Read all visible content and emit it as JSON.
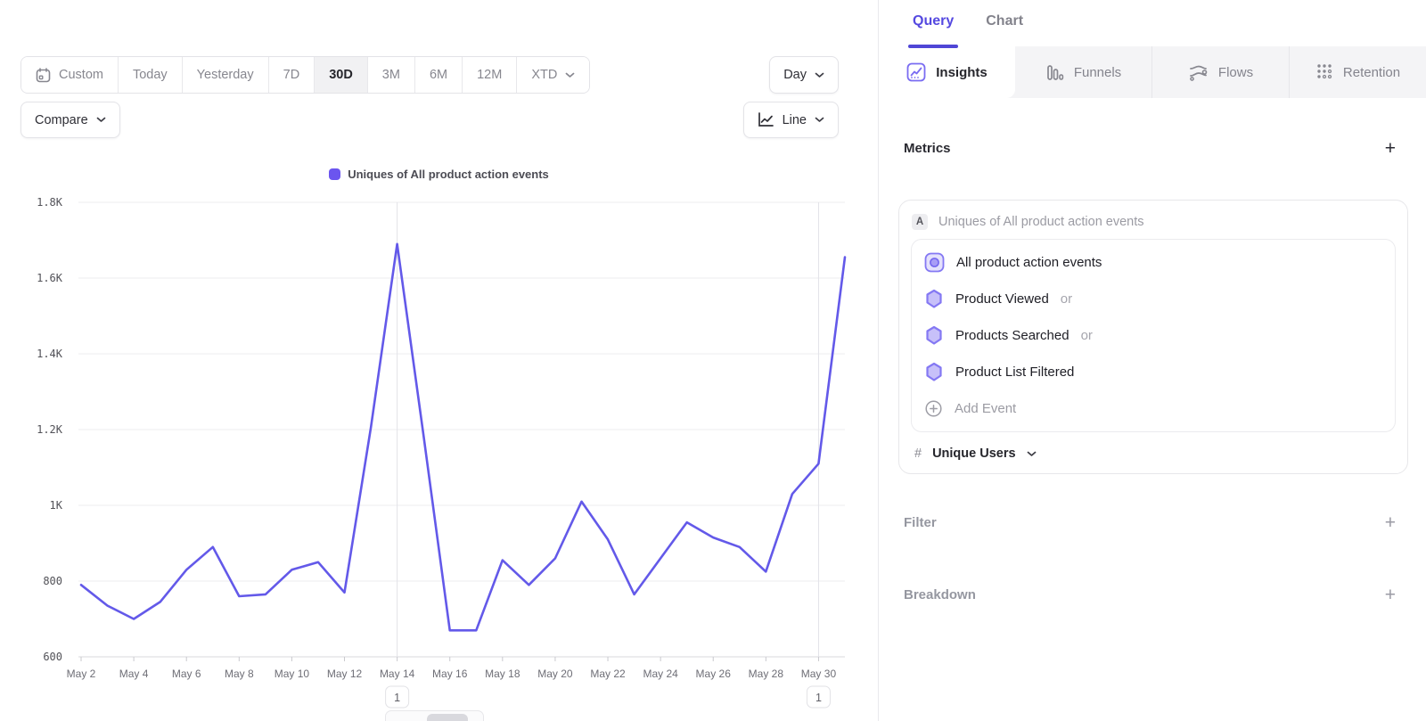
{
  "colors": {
    "accent_purple": "#5549e0",
    "line_color": "#6359e9",
    "legend_swatch": "#6b55ef",
    "grid_line": "#ececef",
    "axis_line": "#d8d8dc",
    "annotation_line": "#e3e3e8",
    "icon_purple": "#7a6cf2",
    "hexagon_fill": "#c7c0f9",
    "hexagon_stroke": "#8478f3"
  },
  "toolbar": {
    "ranges": [
      "Custom",
      "Today",
      "Yesterday",
      "7D",
      "30D",
      "3M",
      "6M",
      "12M",
      "XTD"
    ],
    "selected_range": "30D",
    "granularity_label": "Day",
    "compare_label": "Compare",
    "chart_type_label": "Line"
  },
  "chart_data": {
    "type": "line",
    "title": "",
    "legend_position": "top",
    "grid": true,
    "x": [
      "May 2",
      "May 3",
      "May 4",
      "May 5",
      "May 6",
      "May 7",
      "May 8",
      "May 9",
      "May 10",
      "May 11",
      "May 12",
      "May 13",
      "May 14",
      "May 15",
      "May 16",
      "May 17",
      "May 18",
      "May 19",
      "May 20",
      "May 21",
      "May 22",
      "May 23",
      "May 24",
      "May 25",
      "May 26",
      "May 27",
      "May 28",
      "May 29",
      "May 30",
      "May 31"
    ],
    "series": [
      {
        "name": "Uniques of All product action events",
        "values": [
          790,
          735,
          700,
          745,
          830,
          890,
          760,
          765,
          830,
          850,
          770,
          1205,
          1690,
          1185,
          670,
          670,
          855,
          790,
          860,
          1010,
          910,
          765,
          860,
          955,
          915,
          890,
          825,
          1030,
          1110,
          1655
        ]
      }
    ],
    "ylim": [
      600,
      1800
    ],
    "y_tick_values": [
      600,
      800,
      1000,
      1200,
      1400,
      1600,
      1800
    ],
    "y_tick_labels": [
      "600",
      "800",
      "1K",
      "1.2K",
      "1.4K",
      "1.6K",
      "1.8K"
    ],
    "x_tick_every": 2,
    "annotations": [
      {
        "x": "May 14",
        "label": "1"
      },
      {
        "x": "May 30",
        "label": "1"
      }
    ]
  },
  "panel": {
    "tabs": [
      {
        "label": "Query",
        "active": true
      },
      {
        "label": "Chart",
        "active": false
      }
    ],
    "report_tabs": [
      {
        "label": "Insights",
        "icon": "insights-icon",
        "active": true
      },
      {
        "label": "Funnels",
        "icon": "funnels-icon",
        "active": false
      },
      {
        "label": "Flows",
        "icon": "flows-icon",
        "active": false
      },
      {
        "label": "Retention",
        "icon": "retention-icon",
        "active": false
      }
    ],
    "metrics": {
      "heading": "Metrics",
      "add_metric_label": "+",
      "metric_badge": "A",
      "metric_label": "Uniques of All product action events",
      "events": [
        {
          "name": "All product action events",
          "suffix": "",
          "icon": "event-group-icon"
        },
        {
          "name": "Product Viewed",
          "suffix": "or",
          "icon": "event-hexagon-icon"
        },
        {
          "name": "Products Searched",
          "suffix": "or",
          "icon": "event-hexagon-icon"
        },
        {
          "name": "Product List Filtered",
          "suffix": "",
          "icon": "event-hexagon-icon"
        }
      ],
      "add_event_label": "Add Event",
      "aggregation": {
        "symbol": "#",
        "label": "Unique Users"
      }
    },
    "sections": [
      {
        "heading": "Filter",
        "add_label": "+"
      },
      {
        "heading": "Breakdown",
        "add_label": "+"
      }
    ]
  }
}
